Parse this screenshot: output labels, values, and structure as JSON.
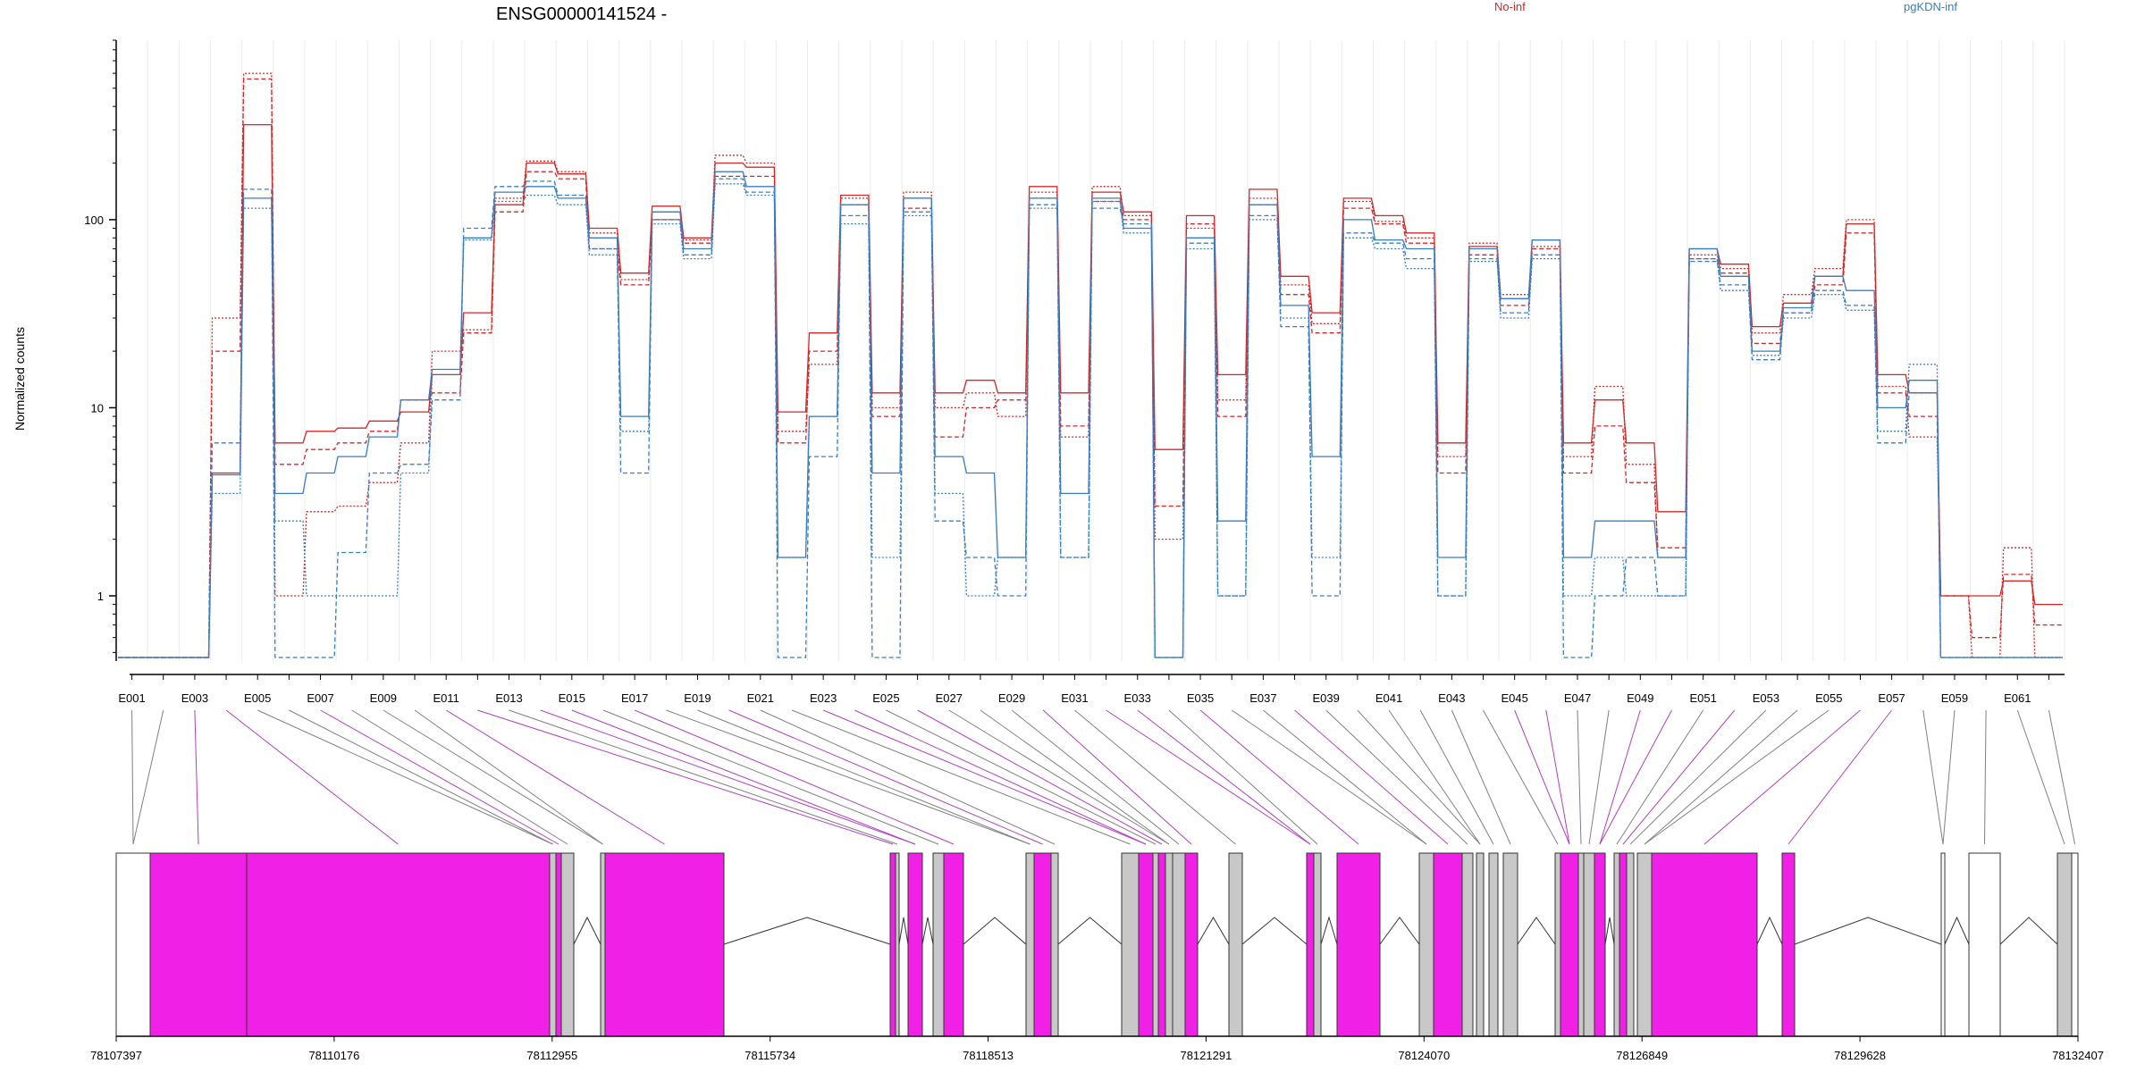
{
  "chart_data": {
    "type": "line",
    "title": "ENSG00000141524 -",
    "ylabel": "Normalized counts",
    "y_scale": "log",
    "ylim": [
      0.45,
      900
    ],
    "y_ticks": [
      "1",
      "10",
      "100"
    ],
    "legend": [
      {
        "name": "No-inf",
        "color": "#d62728"
      },
      {
        "name": "pgKDN-inf",
        "color": "#3a7dbf"
      }
    ],
    "exon_labels": [
      "E001",
      "E003",
      "E005",
      "E007",
      "E009",
      "E011",
      "E013",
      "E015",
      "E017",
      "E019",
      "E021",
      "E023",
      "E025",
      "E027",
      "E029",
      "E031",
      "E033",
      "E035",
      "E037",
      "E039",
      "E041",
      "E043",
      "E045",
      "E047",
      "E049",
      "E051",
      "E053",
      "E055",
      "E057",
      "E059",
      "E061"
    ],
    "genomic_ticks": [
      "78107397",
      "78110176",
      "78112955",
      "78115734",
      "78118513",
      "78121291",
      "78124070",
      "78126849",
      "78129628",
      "78132407"
    ],
    "genomic_range": [
      78107397,
      78132407
    ],
    "series": [
      {
        "name": "No-inf",
        "values": [
          0.47,
          0.47,
          0.47,
          4.5,
          320,
          6.5,
          7.5,
          7.8,
          8.5,
          9.5,
          15,
          32,
          120,
          200,
          175,
          90,
          52,
          118,
          80,
          200,
          190,
          9.5,
          25,
          135,
          12,
          130,
          12,
          14,
          12,
          150,
          12,
          140,
          110,
          6,
          105,
          15,
          145,
          50,
          32,
          130,
          105,
          85,
          6.5,
          72,
          38,
          78,
          6.5,
          11,
          6.5,
          2.8,
          70,
          58,
          27,
          36,
          50,
          95,
          15,
          12,
          1,
          1,
          1.2,
          0.9
        ]
      },
      {
        "name": "No-inf",
        "values": [
          0.47,
          0.47,
          0.47,
          20,
          560,
          5.0,
          6.0,
          6.5,
          7.5,
          11,
          12,
          25,
          110,
          180,
          165,
          70,
          45,
          100,
          75,
          170,
          170,
          6.5,
          20,
          120,
          9,
          115,
          7,
          10,
          11,
          130,
          8,
          125,
          100,
          3,
          95,
          9,
          120,
          40,
          25,
          115,
          95,
          75,
          4.5,
          65,
          35,
          70,
          4.5,
          8,
          4,
          1.8,
          62,
          52,
          22,
          32,
          45,
          85,
          12,
          9,
          1,
          0.6,
          1.3,
          0.7
        ]
      },
      {
        "name": "No-inf",
        "values": [
          0.47,
          0.47,
          0.47,
          30,
          600,
          1.0,
          2.8,
          3.0,
          4.0,
          6.5,
          20,
          26,
          130,
          205,
          180,
          85,
          48,
          110,
          78,
          220,
          200,
          7.5,
          17,
          130,
          10,
          140,
          10,
          12,
          9,
          140,
          7,
          150,
          105,
          2,
          90,
          11,
          130,
          45,
          28,
          125,
          98,
          80,
          5.5,
          75,
          40,
          72,
          5.5,
          13,
          5,
          1.6,
          65,
          55,
          25,
          40,
          55,
          100,
          13,
          7,
          1,
          0.47,
          1.8,
          0.47
        ]
      },
      {
        "name": "pgKDN-inf",
        "values": [
          0.47,
          0.47,
          0.47,
          4.4,
          130,
          3.5,
          4.5,
          5.5,
          7.0,
          11,
          16,
          80,
          140,
          150,
          130,
          80,
          9,
          110,
          70,
          180,
          150,
          1.6,
          9,
          120,
          4.5,
          130,
          5.5,
          4.5,
          1.6,
          130,
          3.5,
          130,
          90,
          0.47,
          80,
          2.5,
          120,
          35,
          5.5,
          100,
          78,
          70,
          1.6,
          70,
          38,
          78,
          1.6,
          2.5,
          2.5,
          1.6,
          70,
          50,
          20,
          34,
          50,
          42,
          10,
          14,
          0.47,
          0.47,
          0.47,
          0.47
        ]
      },
      {
        "name": "pgKDN-inf",
        "values": [
          0.47,
          0.47,
          0.47,
          6.5,
          145,
          0.47,
          0.47,
          1.7,
          4.5,
          5.0,
          11,
          90,
          150,
          160,
          135,
          70,
          4.5,
          100,
          65,
          165,
          140,
          0.47,
          5.5,
          105,
          0.47,
          110,
          2.5,
          1.6,
          1.0,
          120,
          1.6,
          115,
          95,
          0.47,
          75,
          1.0,
          105,
          27,
          1.0,
          85,
          75,
          62,
          1.0,
          62,
          32,
          65,
          0.47,
          1.0,
          1.6,
          1.0,
          60,
          45,
          18,
          32,
          42,
          35,
          6.5,
          12,
          0.47,
          0.47,
          0.47,
          0.47
        ]
      },
      {
        "name": "pgKDN-inf",
        "values": [
          0.47,
          0.47,
          0.47,
          3.5,
          115,
          2.5,
          1.0,
          1.0,
          1.0,
          4.5,
          15,
          78,
          125,
          135,
          120,
          65,
          7.5,
          95,
          62,
          155,
          135,
          1.6,
          9,
          95,
          1.6,
          105,
          3.5,
          1.0,
          1.6,
          115,
          1.6,
          125,
          85,
          0.47,
          70,
          1.0,
          100,
          30,
          1.6,
          80,
          70,
          55,
          1.0,
          60,
          30,
          62,
          1.0,
          1.6,
          1.0,
          1.0,
          62,
          42,
          19,
          30,
          40,
          33,
          7.5,
          17,
          0.47,
          0.47,
          0.47,
          0.47
        ]
      }
    ]
  }
}
